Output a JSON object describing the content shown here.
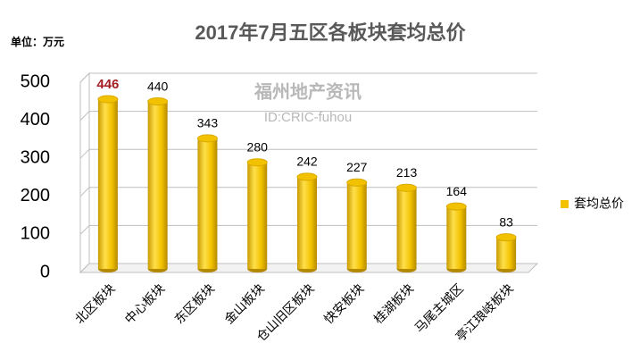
{
  "chart_data": {
    "type": "bar",
    "title": "2017年7月五区各板块套均总价",
    "unit_label": "单位：万元",
    "watermark": [
      "福州地产资讯",
      "ID:CRIC-fuhou"
    ],
    "categories": [
      "北区板块",
      "中心板块",
      "东区板块",
      "金山板块",
      "仓山旧区板块",
      "快安板块",
      "桂湖板块",
      "马尾主城区",
      "亭江琅岐板块"
    ],
    "series": [
      {
        "name": "套均总价",
        "color": "#f2c200",
        "values": [
          446,
          440,
          343,
          280,
          242,
          227,
          213,
          164,
          83
        ]
      }
    ],
    "highlight": {
      "index": 0,
      "color": "#a31f24"
    },
    "ylim": [
      0,
      500
    ],
    "yticks": [
      0,
      100,
      200,
      300,
      400,
      500
    ],
    "grid": true,
    "legend": "right"
  }
}
